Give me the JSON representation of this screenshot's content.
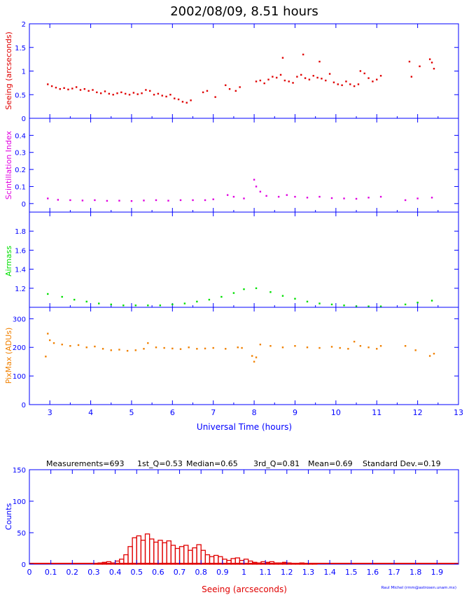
{
  "page": {
    "title": "2002/08/09, 8.51 hours",
    "credit": "Raul Michel (rmm@astrosen.unam.mx)"
  },
  "colors": {
    "axis": "#0000ff",
    "label": "#0000ff",
    "seeing": "#e00000",
    "scintillation": "#e000e0",
    "airmass": "#00e000",
    "pixmax": "#f08000",
    "histogram": "#e00000",
    "ink": "#000000"
  },
  "chart_data": [
    {
      "type": "scatter",
      "panel": "seeing",
      "ylabel": "Seeing (arcseconds)",
      "ylim": [
        0,
        2
      ],
      "yticks": [
        "0",
        "0.5",
        "1",
        "1.5",
        "2"
      ],
      "xlim": [
        2.5,
        13
      ],
      "xticks": [
        "3",
        "4",
        "5",
        "6",
        "7",
        "8",
        "9",
        "10",
        "11",
        "12",
        "13"
      ],
      "series": [
        {
          "color": "#e00000",
          "points": [
            [
              2.95,
              0.72
            ],
            [
              3.05,
              0.68
            ],
            [
              3.15,
              0.65
            ],
            [
              3.25,
              0.62
            ],
            [
              3.35,
              0.64
            ],
            [
              3.45,
              0.61
            ],
            [
              3.55,
              0.63
            ],
            [
              3.65,
              0.66
            ],
            [
              3.75,
              0.6
            ],
            [
              3.85,
              0.62
            ],
            [
              3.95,
              0.58
            ],
            [
              4.05,
              0.6
            ],
            [
              4.15,
              0.55
            ],
            [
              4.25,
              0.53
            ],
            [
              4.35,
              0.57
            ],
            [
              4.45,
              0.52
            ],
            [
              4.55,
              0.5
            ],
            [
              4.65,
              0.53
            ],
            [
              4.75,
              0.55
            ],
            [
              4.85,
              0.52
            ],
            [
              4.95,
              0.5
            ],
            [
              5.05,
              0.54
            ],
            [
              5.15,
              0.51
            ],
            [
              5.25,
              0.53
            ],
            [
              5.35,
              0.6
            ],
            [
              5.45,
              0.58
            ],
            [
              5.55,
              0.5
            ],
            [
              5.65,
              0.52
            ],
            [
              5.75,
              0.48
            ],
            [
              5.85,
              0.46
            ],
            [
              5.95,
              0.5
            ],
            [
              6.05,
              0.42
            ],
            [
              6.15,
              0.4
            ],
            [
              6.25,
              0.35
            ],
            [
              6.35,
              0.33
            ],
            [
              6.45,
              0.38
            ],
            [
              6.75,
              0.55
            ],
            [
              6.85,
              0.58
            ],
            [
              7.05,
              0.45
            ],
            [
              7.3,
              0.7
            ],
            [
              7.4,
              0.62
            ],
            [
              7.55,
              0.58
            ],
            [
              7.65,
              0.66
            ],
            [
              8.05,
              0.78
            ],
            [
              8.15,
              0.8
            ],
            [
              8.25,
              0.74
            ],
            [
              8.35,
              0.82
            ],
            [
              8.45,
              0.88
            ],
            [
              8.55,
              0.86
            ],
            [
              8.65,
              0.92
            ],
            [
              8.7,
              1.28
            ],
            [
              8.75,
              0.8
            ],
            [
              8.85,
              0.78
            ],
            [
              8.95,
              0.75
            ],
            [
              9.05,
              0.88
            ],
            [
              9.15,
              0.92
            ],
            [
              9.2,
              1.35
            ],
            [
              9.25,
              0.85
            ],
            [
              9.35,
              0.82
            ],
            [
              9.45,
              0.9
            ],
            [
              9.55,
              0.86
            ],
            [
              9.6,
              1.2
            ],
            [
              9.65,
              0.84
            ],
            [
              9.75,
              0.8
            ],
            [
              9.85,
              0.94
            ],
            [
              9.95,
              0.76
            ],
            [
              10.05,
              0.72
            ],
            [
              10.15,
              0.7
            ],
            [
              10.25,
              0.78
            ],
            [
              10.35,
              0.72
            ],
            [
              10.45,
              0.68
            ],
            [
              10.55,
              0.72
            ],
            [
              10.6,
              1.0
            ],
            [
              10.7,
              0.95
            ],
            [
              10.8,
              0.85
            ],
            [
              10.9,
              0.78
            ],
            [
              11.0,
              0.82
            ],
            [
              11.1,
              0.9
            ],
            [
              11.8,
              1.2
            ],
            [
              11.85,
              0.88
            ],
            [
              12.05,
              1.1
            ],
            [
              12.3,
              1.25
            ],
            [
              12.35,
              1.18
            ],
            [
              12.4,
              1.05
            ]
          ]
        }
      ]
    },
    {
      "type": "scatter",
      "panel": "scintillation",
      "ylabel": "Scintillation Index",
      "ylim": [
        -0.05,
        0.5
      ],
      "yticks": [
        "0",
        "0.1",
        "0.2",
        "0.3",
        "0.4"
      ],
      "series": [
        {
          "color": "#e000e0",
          "points": [
            [
              2.95,
              0.03
            ],
            [
              3.2,
              0.022
            ],
            [
              3.5,
              0.02
            ],
            [
              3.8,
              0.018
            ],
            [
              4.1,
              0.02
            ],
            [
              4.4,
              0.016
            ],
            [
              4.7,
              0.017
            ],
            [
              5.0,
              0.015
            ],
            [
              5.3,
              0.018
            ],
            [
              5.6,
              0.02
            ],
            [
              5.9,
              0.017
            ],
            [
              6.2,
              0.02
            ],
            [
              6.5,
              0.02
            ],
            [
              6.8,
              0.02
            ],
            [
              7.0,
              0.025
            ],
            [
              7.35,
              0.05
            ],
            [
              7.5,
              0.04
            ],
            [
              7.75,
              0.03
            ],
            [
              8.0,
              0.14
            ],
            [
              8.05,
              0.1
            ],
            [
              8.15,
              0.07
            ],
            [
              8.3,
              0.045
            ],
            [
              8.6,
              0.04
            ],
            [
              8.8,
              0.05
            ],
            [
              9.0,
              0.04
            ],
            [
              9.3,
              0.035
            ],
            [
              9.6,
              0.04
            ],
            [
              9.9,
              0.032
            ],
            [
              10.2,
              0.03
            ],
            [
              10.5,
              0.028
            ],
            [
              10.8,
              0.035
            ],
            [
              11.1,
              0.04
            ],
            [
              11.7,
              0.02
            ],
            [
              12.0,
              0.03
            ],
            [
              12.35,
              0.035
            ]
          ]
        }
      ]
    },
    {
      "type": "scatter",
      "panel": "airmass",
      "ylabel": "Airmass",
      "ylim": [
        1,
        2
      ],
      "yticks": [
        "1.2",
        "1.4",
        "1.6",
        "1.8"
      ],
      "series": [
        {
          "color": "#00e000",
          "points": [
            [
              2.95,
              1.14
            ],
            [
              3.3,
              1.11
            ],
            [
              3.6,
              1.08
            ],
            [
              3.9,
              1.06
            ],
            [
              4.2,
              1.04
            ],
            [
              4.5,
              1.03
            ],
            [
              4.8,
              1.02
            ],
            [
              5.1,
              1.02
            ],
            [
              5.4,
              1.02
            ],
            [
              5.7,
              1.02
            ],
            [
              6.0,
              1.03
            ],
            [
              6.3,
              1.04
            ],
            [
              6.6,
              1.06
            ],
            [
              6.9,
              1.08
            ],
            [
              7.2,
              1.11
            ],
            [
              7.5,
              1.15
            ],
            [
              7.75,
              1.19
            ],
            [
              8.05,
              1.2
            ],
            [
              8.4,
              1.16
            ],
            [
              8.7,
              1.12
            ],
            [
              9.0,
              1.09
            ],
            [
              9.3,
              1.06
            ],
            [
              9.6,
              1.04
            ],
            [
              9.9,
              1.03
            ],
            [
              10.2,
              1.02
            ],
            [
              10.5,
              1.01
            ],
            [
              10.8,
              1.01
            ],
            [
              11.1,
              1.01
            ],
            [
              11.7,
              1.03
            ],
            [
              12.0,
              1.05
            ],
            [
              12.35,
              1.07
            ]
          ]
        }
      ]
    },
    {
      "type": "scatter",
      "panel": "pixmax",
      "ylabel": "PixMax (ADUs)",
      "ylim": [
        0,
        340
      ],
      "yticks": [
        "0",
        "100",
        "200",
        "300"
      ],
      "xlabel": "Universal Time (hours)",
      "series": [
        {
          "color": "#f08000",
          "points": [
            [
              2.9,
              168
            ],
            [
              2.95,
              248
            ],
            [
              3.0,
              225
            ],
            [
              3.1,
              215
            ],
            [
              3.3,
              210
            ],
            [
              3.5,
              205
            ],
            [
              3.7,
              208
            ],
            [
              3.9,
              200
            ],
            [
              4.1,
              203
            ],
            [
              4.3,
              195
            ],
            [
              4.5,
              190
            ],
            [
              4.7,
              192
            ],
            [
              4.9,
              188
            ],
            [
              5.1,
              190
            ],
            [
              5.3,
              195
            ],
            [
              5.4,
              215
            ],
            [
              5.6,
              200
            ],
            [
              5.8,
              198
            ],
            [
              6.0,
              196
            ],
            [
              6.2,
              194
            ],
            [
              6.4,
              200
            ],
            [
              6.6,
              195
            ],
            [
              6.8,
              196
            ],
            [
              7.0,
              198
            ],
            [
              7.3,
              195
            ],
            [
              7.6,
              200
            ],
            [
              7.7,
              198
            ],
            [
              7.95,
              170
            ],
            [
              8.0,
              150
            ],
            [
              8.05,
              165
            ],
            [
              8.15,
              210
            ],
            [
              8.4,
              205
            ],
            [
              8.7,
              200
            ],
            [
              9.0,
              205
            ],
            [
              9.3,
              200
            ],
            [
              9.6,
              198
            ],
            [
              9.9,
              202
            ],
            [
              10.1,
              198
            ],
            [
              10.3,
              195
            ],
            [
              10.45,
              220
            ],
            [
              10.6,
              205
            ],
            [
              10.8,
              200
            ],
            [
              11.0,
              195
            ],
            [
              11.1,
              205
            ],
            [
              11.7,
              205
            ],
            [
              11.95,
              190
            ],
            [
              12.3,
              170
            ],
            [
              12.4,
              178
            ]
          ]
        }
      ]
    },
    {
      "type": "bar",
      "panel": "histogram",
      "header": {
        "measurements": "Measurements=693",
        "q1": "1st_Q=0.53",
        "median": "Median=0.65",
        "q3": "3rd_Q=0.81",
        "mean": "Mean=0.69",
        "std": "Standard Dev.=0.19"
      },
      "xlabel": "Seeing (arcseconds)",
      "ylabel": "Counts",
      "xlim": [
        0,
        2
      ],
      "ylim": [
        0,
        150
      ],
      "xticks": [
        "0",
        "0.1",
        "0.2",
        "0.3",
        "0.4",
        "0.5",
        "0.6",
        "0.7",
        "0.8",
        "0.9",
        "1",
        "1.1",
        "1.2",
        "1.3",
        "1.4",
        "1.5",
        "1.6",
        "1.7",
        "1.8",
        "1.9"
      ],
      "yticks": [
        "0",
        "50",
        "100",
        "150"
      ],
      "bin_width": 0.02,
      "bin_start": 0.3,
      "values": [
        1,
        2,
        3,
        4,
        2,
        5,
        8,
        15,
        28,
        42,
        45,
        38,
        48,
        40,
        35,
        38,
        34,
        37,
        30,
        25,
        28,
        30,
        22,
        26,
        31,
        22,
        15,
        12,
        14,
        12,
        8,
        6,
        9,
        10,
        6,
        8,
        5,
        3,
        2,
        4,
        3,
        4,
        2,
        2,
        3,
        2,
        1,
        1,
        2,
        1,
        1,
        1
      ]
    }
  ]
}
